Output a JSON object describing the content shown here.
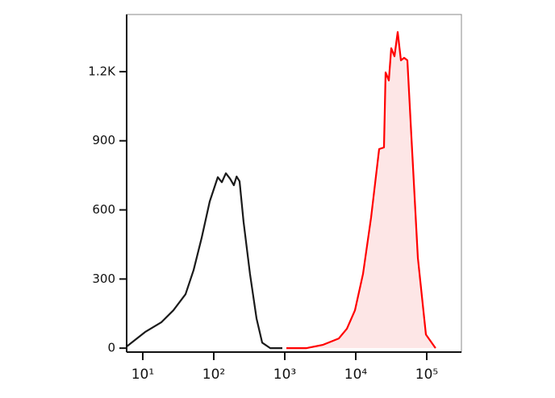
{
  "chart_data": {
    "type": "histogram-overlay",
    "xscale": "log",
    "xlim": [
      5.93,
      308000
    ],
    "ylim": [
      -17,
      1448
    ],
    "xticks": [
      {
        "value": 10,
        "label": "10¹"
      },
      {
        "value": 100,
        "label": "10²"
      },
      {
        "value": 1000,
        "label": "10³"
      },
      {
        "value": 10000,
        "label": "10⁴"
      },
      {
        "value": 100000,
        "label": "10⁵"
      }
    ],
    "yticks": [
      0,
      300,
      600,
      900,
      {
        "value": 1200,
        "label": "1.2K"
      }
    ],
    "series": [
      {
        "color": "#1a1a1a",
        "fill": "none",
        "x": [
          5.93,
          10.8,
          18.2,
          27.0,
          40.0,
          52.0,
          67.6,
          87.8,
          114,
          130,
          148,
          170,
          192,
          210,
          231,
          263,
          324,
          400,
          481,
          624,
          925
        ],
        "values": [
          7,
          70,
          112,
          164,
          234,
          339,
          479,
          637,
          742,
          720,
          759,
          735,
          707,
          745,
          724,
          549,
          322,
          129,
          24,
          0,
          0
        ]
      },
      {
        "color": "#ff0000",
        "fill": "#fde6e6",
        "x": [
          1054,
          2028,
          3420,
          5770,
          7500,
          9750,
          12650,
          16440,
          21380,
          25000,
          26300,
          29200,
          31600,
          35100,
          39000,
          43300,
          48000,
          53300,
          60800,
          75000,
          97500,
          133000
        ],
        "values": [
          0,
          0,
          14,
          42,
          84,
          164,
          322,
          567,
          864,
          871,
          1197,
          1162,
          1302,
          1267,
          1372,
          1249,
          1260,
          1249,
          917,
          392,
          59,
          0
        ]
      }
    ]
  }
}
